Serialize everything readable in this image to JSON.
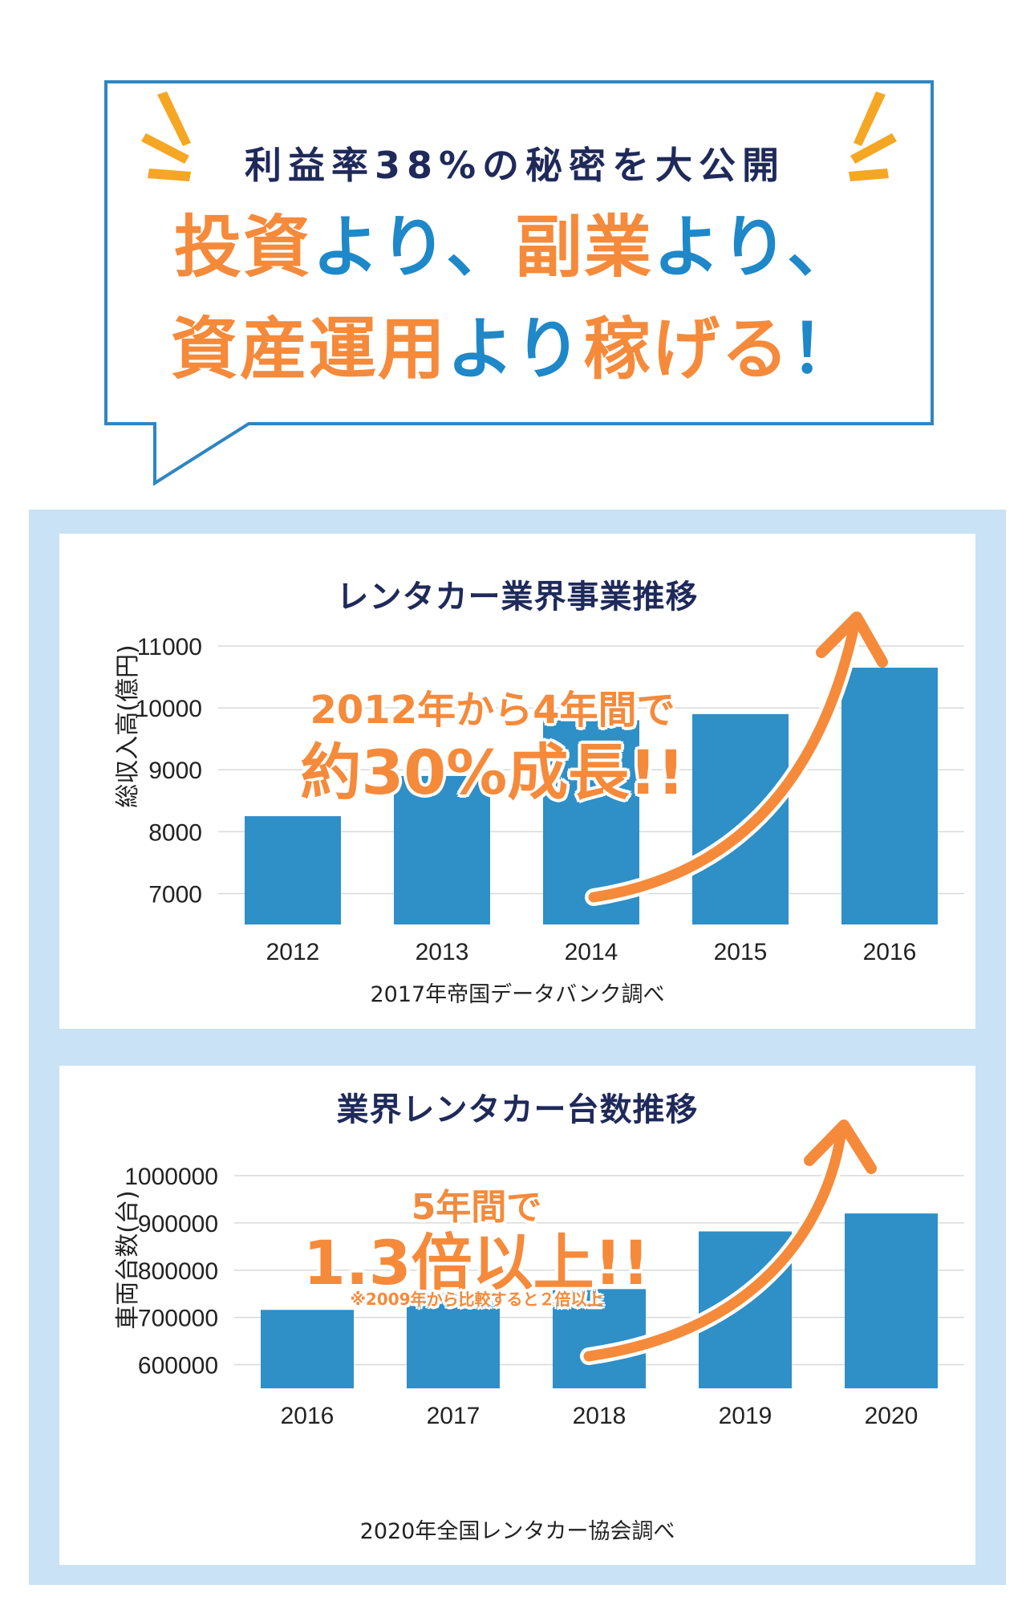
{
  "header": {
    "subtitle": "利益率38%の秘密を大公開",
    "line1": [
      {
        "text": "投資",
        "color": "orange"
      },
      {
        "text": "より、",
        "color": "blue"
      },
      {
        "text": "副業",
        "color": "orange"
      },
      {
        "text": "より、",
        "color": "blue"
      }
    ],
    "line2": [
      {
        "text": "資産運用",
        "color": "orange"
      },
      {
        "text": "より",
        "color": "blue"
      },
      {
        "text": "稼げる",
        "color": "orange"
      },
      {
        "text": "！",
        "color": "blue"
      }
    ]
  },
  "colors": {
    "orange": "#f58a3b",
    "blue": "#1e88c8",
    "bar": "#2f8fc7",
    "navy": "#1f2a5a",
    "panel": "#c9e2f5"
  },
  "chart_data": [
    {
      "type": "bar",
      "title": "レンタカー業界事業推移",
      "categories": [
        "2012",
        "2013",
        "2014",
        "2015",
        "2016"
      ],
      "values": [
        8250,
        8900,
        9800,
        9900,
        10650
      ],
      "ylabel": "総収入高(億円)",
      "yticks": [
        "11000",
        "10000",
        "9000",
        "8000",
        "7000"
      ],
      "ylim": [
        6500,
        11000
      ],
      "grid": true,
      "source": "2017年帝国データバンク調べ",
      "callout_line1": "2012年から4年間で",
      "callout_line2": "約30%成長!!"
    },
    {
      "type": "bar",
      "title": "業界レンタカー台数推移",
      "categories": [
        "2016",
        "2017",
        "2018",
        "2019",
        "2020"
      ],
      "values": [
        716000,
        752000,
        760000,
        882000,
        920000
      ],
      "ylabel": "車両台数(台)",
      "yticks": [
        "1000000",
        "900000",
        "800000",
        "700000",
        "600000"
      ],
      "ylim": [
        550000,
        1000000
      ],
      "grid": true,
      "source": "2020年全国レンタカー協会調べ",
      "callout_line1": "5年間で",
      "callout_line2": "1.3倍以上!!",
      "callout_note": "※2009年から比較すると２倍以上"
    }
  ]
}
